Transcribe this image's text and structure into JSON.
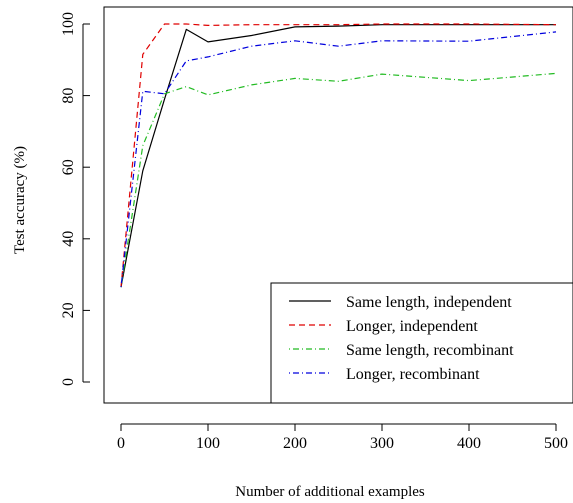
{
  "chart_data": {
    "type": "line",
    "title": "",
    "xlabel": "Number of additional examples",
    "ylabel": "Test accuracy (%)",
    "xlim": [
      0,
      500
    ],
    "ylim": [
      0,
      100
    ],
    "x_ticks": [
      0,
      100,
      200,
      300,
      400,
      500
    ],
    "y_ticks": [
      0,
      20,
      40,
      60,
      80,
      100
    ],
    "grid": false,
    "legend_position": "bottom-right",
    "series": [
      {
        "name": "Same length, independent",
        "color": "#000000",
        "dash": "solid",
        "x": [
          0,
          25,
          50,
          75,
          100,
          150,
          200,
          250,
          300,
          400,
          500
        ],
        "y": [
          26.5,
          59,
          79,
          98.5,
          95,
          96.8,
          99.2,
          99.4,
          99.8,
          99.8,
          99.8
        ]
      },
      {
        "name": "Longer, independent",
        "color": "#df0000",
        "dash": "dashed",
        "x": [
          0,
          25,
          50,
          75,
          100,
          150,
          200,
          250,
          300,
          400,
          500
        ],
        "y": [
          26.5,
          91.5,
          100,
          100,
          99.6,
          99.8,
          99.8,
          99.8,
          100,
          100,
          99.8
        ]
      },
      {
        "name": "Same length, recombinant",
        "color": "#22bb22",
        "dash": "dotdash",
        "x": [
          0,
          25,
          50,
          75,
          100,
          150,
          200,
          250,
          300,
          400,
          500
        ],
        "y": [
          26.5,
          66,
          80.5,
          82.5,
          80.2,
          83,
          84.8,
          84,
          86,
          84.2,
          86.2
        ]
      },
      {
        "name": "Longer, recombinant",
        "color": "#0000dd",
        "dash": "dotdash",
        "x": [
          0,
          25,
          50,
          75,
          100,
          150,
          200,
          250,
          300,
          400,
          500
        ],
        "y": [
          26.5,
          81.2,
          80.5,
          89.7,
          90.8,
          93.8,
          95.3,
          93.8,
          95.3,
          95.2,
          97.8
        ]
      }
    ]
  }
}
